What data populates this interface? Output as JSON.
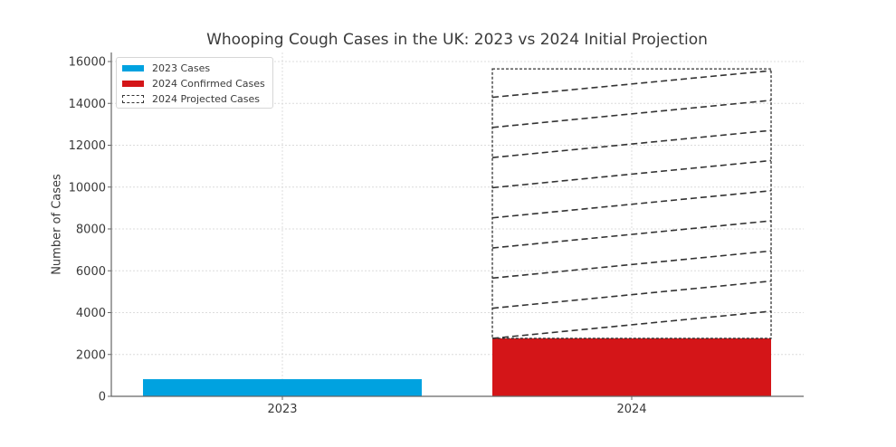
{
  "chart_data": {
    "type": "bar",
    "title": "Whooping Cough Cases in the UK: 2023 vs 2024 Initial Projection",
    "xlabel": "",
    "ylabel": "Number of Cases",
    "categories": [
      "2023",
      "2024"
    ],
    "series": [
      {
        "name": "2023 Cases",
        "values": [
          820,
          null
        ],
        "color": "#00a2e0"
      },
      {
        "name": "2024 Confirmed Cases",
        "values": [
          null,
          2770
        ],
        "color": "#d41518"
      },
      {
        "name": "2024 Projected Cases",
        "values": [
          null,
          15650
        ],
        "style": "dashed outline with diagonal dashed hatch",
        "color": "#333333"
      }
    ],
    "ylim": [
      0,
      16400
    ],
    "yticks": [
      0,
      2000,
      4000,
      6000,
      8000,
      10000,
      12000,
      14000,
      16000
    ],
    "grid": true,
    "legend_position": "upper left"
  },
  "legend": {
    "items": [
      {
        "label": "2023 Cases"
      },
      {
        "label": "2024 Confirmed Cases"
      },
      {
        "label": "2024 Projected Cases"
      }
    ]
  }
}
